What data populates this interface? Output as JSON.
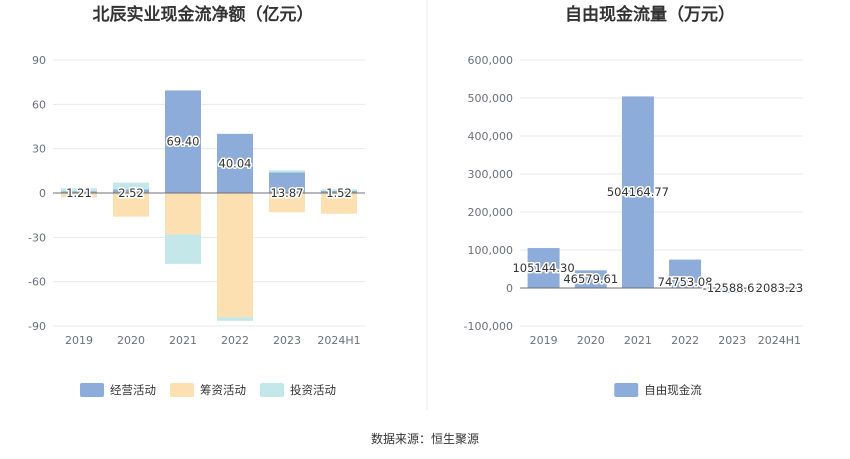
{
  "source": {
    "label": "数据来源：恒生聚源"
  },
  "chart_data": [
    {
      "type": "bar",
      "stacked": true,
      "title": "北辰实业现金流净额（亿元）",
      "categories": [
        "2019",
        "2020",
        "2021",
        "2022",
        "2023",
        "2024H1"
      ],
      "yticks": [
        "90",
        "60",
        "30",
        "0",
        "-30",
        "-60",
        "-90"
      ],
      "ylim": [
        -90,
        90
      ],
      "grid": true,
      "legend_position": "bottom",
      "series": [
        {
          "name": "经营活动",
          "color": "#8eacd9",
          "values": [
            1.21,
            2.52,
            69.4,
            40.04,
            13.87,
            1.52
          ]
        },
        {
          "name": "筹资活动",
          "color": "#fde0b2",
          "values": [
            -3.0,
            -16.0,
            -28.0,
            -84.0,
            -13.0,
            -14.0
          ]
        },
        {
          "name": "投资活动",
          "color": "#c4e8ea",
          "values": [
            2.0,
            4.5,
            -20.0,
            -2.5,
            1.5,
            1.0
          ]
        }
      ],
      "data_labels": [
        "1.21",
        "2.52",
        "69.40",
        "40.04",
        "13.87",
        "1.52"
      ]
    },
    {
      "type": "bar",
      "title": "自由现金流量（万元）",
      "categories": [
        "2019",
        "2020",
        "2021",
        "2022",
        "2023",
        "2024H1"
      ],
      "yticks": [
        "600,000",
        "500,000",
        "400,000",
        "300,000",
        "200,000",
        "100,000",
        "0",
        "-100,000"
      ],
      "ylim": [
        -100000,
        600000
      ],
      "grid": true,
      "legend_position": "bottom",
      "series": [
        {
          "name": "自由现金流",
          "color": "#8eacd9",
          "values": [
            105144.3,
            46579.61,
            504164.77,
            74753.08,
            -12588.63,
            2083.23
          ]
        }
      ],
      "data_labels": [
        "105144.30",
        "46579.61",
        "504164.77",
        "74753.08",
        "-12588.63",
        "2083.23"
      ]
    }
  ]
}
